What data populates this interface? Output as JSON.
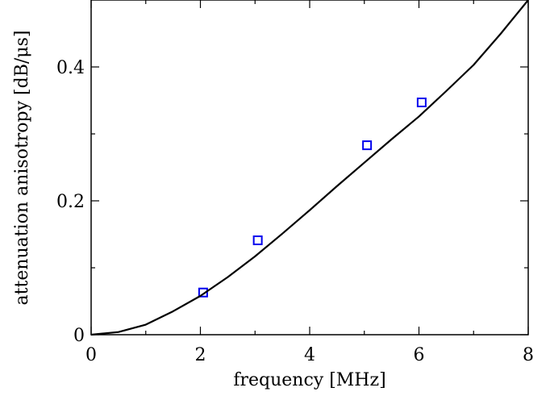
{
  "chart_data": {
    "type": "scatter",
    "title": "",
    "xlabel": "frequency [MHz]",
    "ylabel": "attenuation anisotropy [dB/μs]",
    "xlim": [
      0,
      8
    ],
    "ylim": [
      0,
      0.5
    ],
    "x_ticks": [
      0,
      2,
      4,
      6,
      8
    ],
    "y_ticks": [
      0,
      0.2,
      0.4
    ],
    "x_tick_labels": [
      "0",
      "2",
      "4",
      "6",
      "8"
    ],
    "y_tick_labels": [
      "0",
      "0.2",
      "0.4"
    ],
    "grid": false,
    "legend": "none",
    "series": [
      {
        "kind": "markers",
        "marker": "square",
        "color": "#0000ee",
        "x": [
          2.05,
          3.05,
          5.05,
          6.05
        ],
        "y": [
          0.063,
          0.141,
          0.283,
          0.347
        ]
      },
      {
        "kind": "line",
        "color": "#000000",
        "x": [
          0,
          0.5,
          1.0,
          1.5,
          2.0,
          2.5,
          3.0,
          3.5,
          4.0,
          4.5,
          5.0,
          5.5,
          6.0,
          6.5,
          7.0,
          7.5,
          8.0
        ],
        "y": [
          0,
          0.004,
          0.015,
          0.035,
          0.058,
          0.086,
          0.117,
          0.151,
          0.186,
          0.222,
          0.257,
          0.292,
          0.326,
          0.364,
          0.403,
          0.45,
          0.5
        ]
      }
    ]
  }
}
